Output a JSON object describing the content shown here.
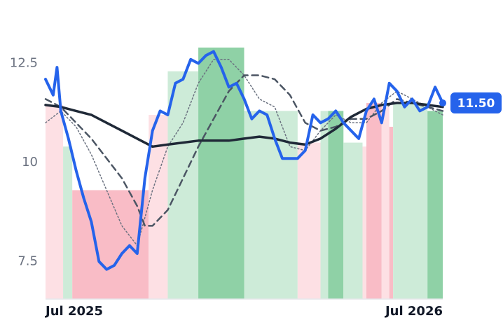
{
  "chart_data": {
    "type": "line",
    "xlim": [
      0,
      52
    ],
    "xticks": [
      {
        "value": 0,
        "label": "Jul 2025"
      },
      {
        "value": 52,
        "label": "Jul 2026"
      }
    ],
    "ylim": [
      6.55,
      14.1
    ],
    "yticks": [
      7.5,
      10.0,
      12.5
    ],
    "grid": false,
    "bands": [
      {
        "from": 0,
        "to": 2.3,
        "value": 11.45,
        "color": "#fde0e4"
      },
      {
        "from": 2.3,
        "to": 3.5,
        "value": 10.4,
        "color": "#cdebd8"
      },
      {
        "from": 3.5,
        "to": 13.5,
        "value": 9.3,
        "color": "#f9bcc6"
      },
      {
        "from": 13.5,
        "to": 16,
        "value": 11.2,
        "color": "#fde0e4"
      },
      {
        "from": 16,
        "to": 20,
        "value": 12.3,
        "color": "#cdebd8"
      },
      {
        "from": 20,
        "to": 26,
        "value": 12.9,
        "color": "#8fd1a6"
      },
      {
        "from": 26,
        "to": 33,
        "value": 11.3,
        "color": "#cdebd8"
      },
      {
        "from": 33,
        "to": 36,
        "value": 10.5,
        "color": "#fde0e4"
      },
      {
        "from": 36,
        "to": 37,
        "value": 11.3,
        "color": "#cdebd8"
      },
      {
        "from": 37,
        "to": 39,
        "value": 11.3,
        "color": "#8fd1a6"
      },
      {
        "from": 39,
        "to": 41.5,
        "value": 10.5,
        "color": "#cdebd8"
      },
      {
        "from": 41.5,
        "to": 42,
        "value": 10.4,
        "color": "#fde0e4"
      },
      {
        "from": 42,
        "to": 44,
        "value": 11.5,
        "color": "#f9bcc6"
      },
      {
        "from": 44,
        "to": 45,
        "value": 11.4,
        "color": "#fde0e4"
      },
      {
        "from": 45,
        "to": 45.5,
        "value": 10.9,
        "color": "#f9bcc6"
      },
      {
        "from": 45.5,
        "to": 50,
        "value": 11.5,
        "color": "#cdebd8"
      },
      {
        "from": 50,
        "to": 52,
        "value": 11.3,
        "color": "#8fd1a6"
      }
    ],
    "series": [
      {
        "color": "#6b7280",
        "style": "dotted",
        "width": 1.5,
        "x": [
          0,
          2,
          4,
          6,
          8,
          10,
          12,
          14,
          16,
          18,
          20,
          22,
          24,
          26,
          28,
          30,
          32,
          34,
          36,
          38,
          40,
          42,
          44,
          46,
          48,
          50,
          52
        ],
        "values": [
          11.0,
          11.3,
          10.9,
          10.2,
          9.3,
          8.4,
          7.9,
          9.3,
          10.4,
          11.0,
          12.0,
          12.6,
          12.6,
          12.2,
          11.6,
          11.4,
          10.4,
          10.3,
          10.8,
          11.2,
          11.0,
          11.0,
          11.5,
          11.8,
          11.6,
          11.4,
          11.2
        ]
      },
      {
        "color": "#4b5563",
        "style": "dashed",
        "width": 2.5,
        "x": [
          0,
          2,
          4,
          6,
          8,
          10,
          12,
          13,
          14,
          16,
          18,
          20,
          22,
          24,
          26,
          28,
          30,
          32,
          34,
          36,
          38,
          40,
          42,
          44,
          46,
          48,
          50,
          52
        ],
        "values": [
          11.6,
          11.4,
          11.0,
          10.6,
          10.1,
          9.6,
          8.9,
          8.4,
          8.4,
          8.8,
          9.6,
          10.4,
          11.1,
          11.8,
          12.2,
          12.2,
          12.1,
          11.7,
          11.0,
          10.8,
          10.9,
          11.1,
          11.1,
          11.3,
          11.6,
          11.5,
          11.4,
          11.3
        ]
      },
      {
        "color": "#1f2937",
        "style": "solid",
        "width": 3.5,
        "x": [
          0,
          2,
          4,
          6,
          8,
          10,
          12,
          14,
          16,
          18,
          20,
          22,
          24,
          26,
          28,
          30,
          32,
          34,
          36,
          38,
          40,
          42,
          44,
          46,
          48,
          50,
          52
        ],
        "values": [
          11.45,
          11.4,
          11.3,
          11.2,
          11.0,
          10.8,
          10.6,
          10.4,
          10.45,
          10.5,
          10.55,
          10.55,
          10.55,
          10.6,
          10.65,
          10.6,
          10.5,
          10.45,
          10.6,
          10.85,
          11.15,
          11.35,
          11.45,
          11.5,
          11.5,
          11.45,
          11.4
        ]
      },
      {
        "color": "#2563eb",
        "style": "solid",
        "width": 4,
        "x": [
          0,
          1,
          1.5,
          2,
          3,
          4,
          5,
          6,
          7,
          8,
          9,
          10,
          11,
          12,
          13,
          14,
          15,
          16,
          17,
          18,
          19,
          20,
          21,
          22,
          23,
          24,
          25,
          26,
          27,
          28,
          29,
          30,
          31,
          32,
          33,
          34,
          35,
          36,
          37,
          38,
          39,
          40,
          41,
          42,
          43,
          44,
          45,
          46,
          47,
          48,
          49,
          50,
          51,
          52
        ],
        "values": [
          12.1,
          11.7,
          12.4,
          11.3,
          10.6,
          9.8,
          9.1,
          8.5,
          7.5,
          7.3,
          7.4,
          7.7,
          7.9,
          7.7,
          9.6,
          10.8,
          11.3,
          11.2,
          12.0,
          12.1,
          12.6,
          12.5,
          12.7,
          12.8,
          12.4,
          11.9,
          12.0,
          11.6,
          11.1,
          11.3,
          11.2,
          10.6,
          10.1,
          10.1,
          10.1,
          10.3,
          11.2,
          11.0,
          11.1,
          11.3,
          11.0,
          10.8,
          10.6,
          11.3,
          11.6,
          11.0,
          12.0,
          11.8,
          11.4,
          11.6,
          11.3,
          11.4,
          11.9,
          11.5
        ],
        "end_label": {
          "value": 11.5,
          "label": "11.50"
        }
      }
    ]
  }
}
